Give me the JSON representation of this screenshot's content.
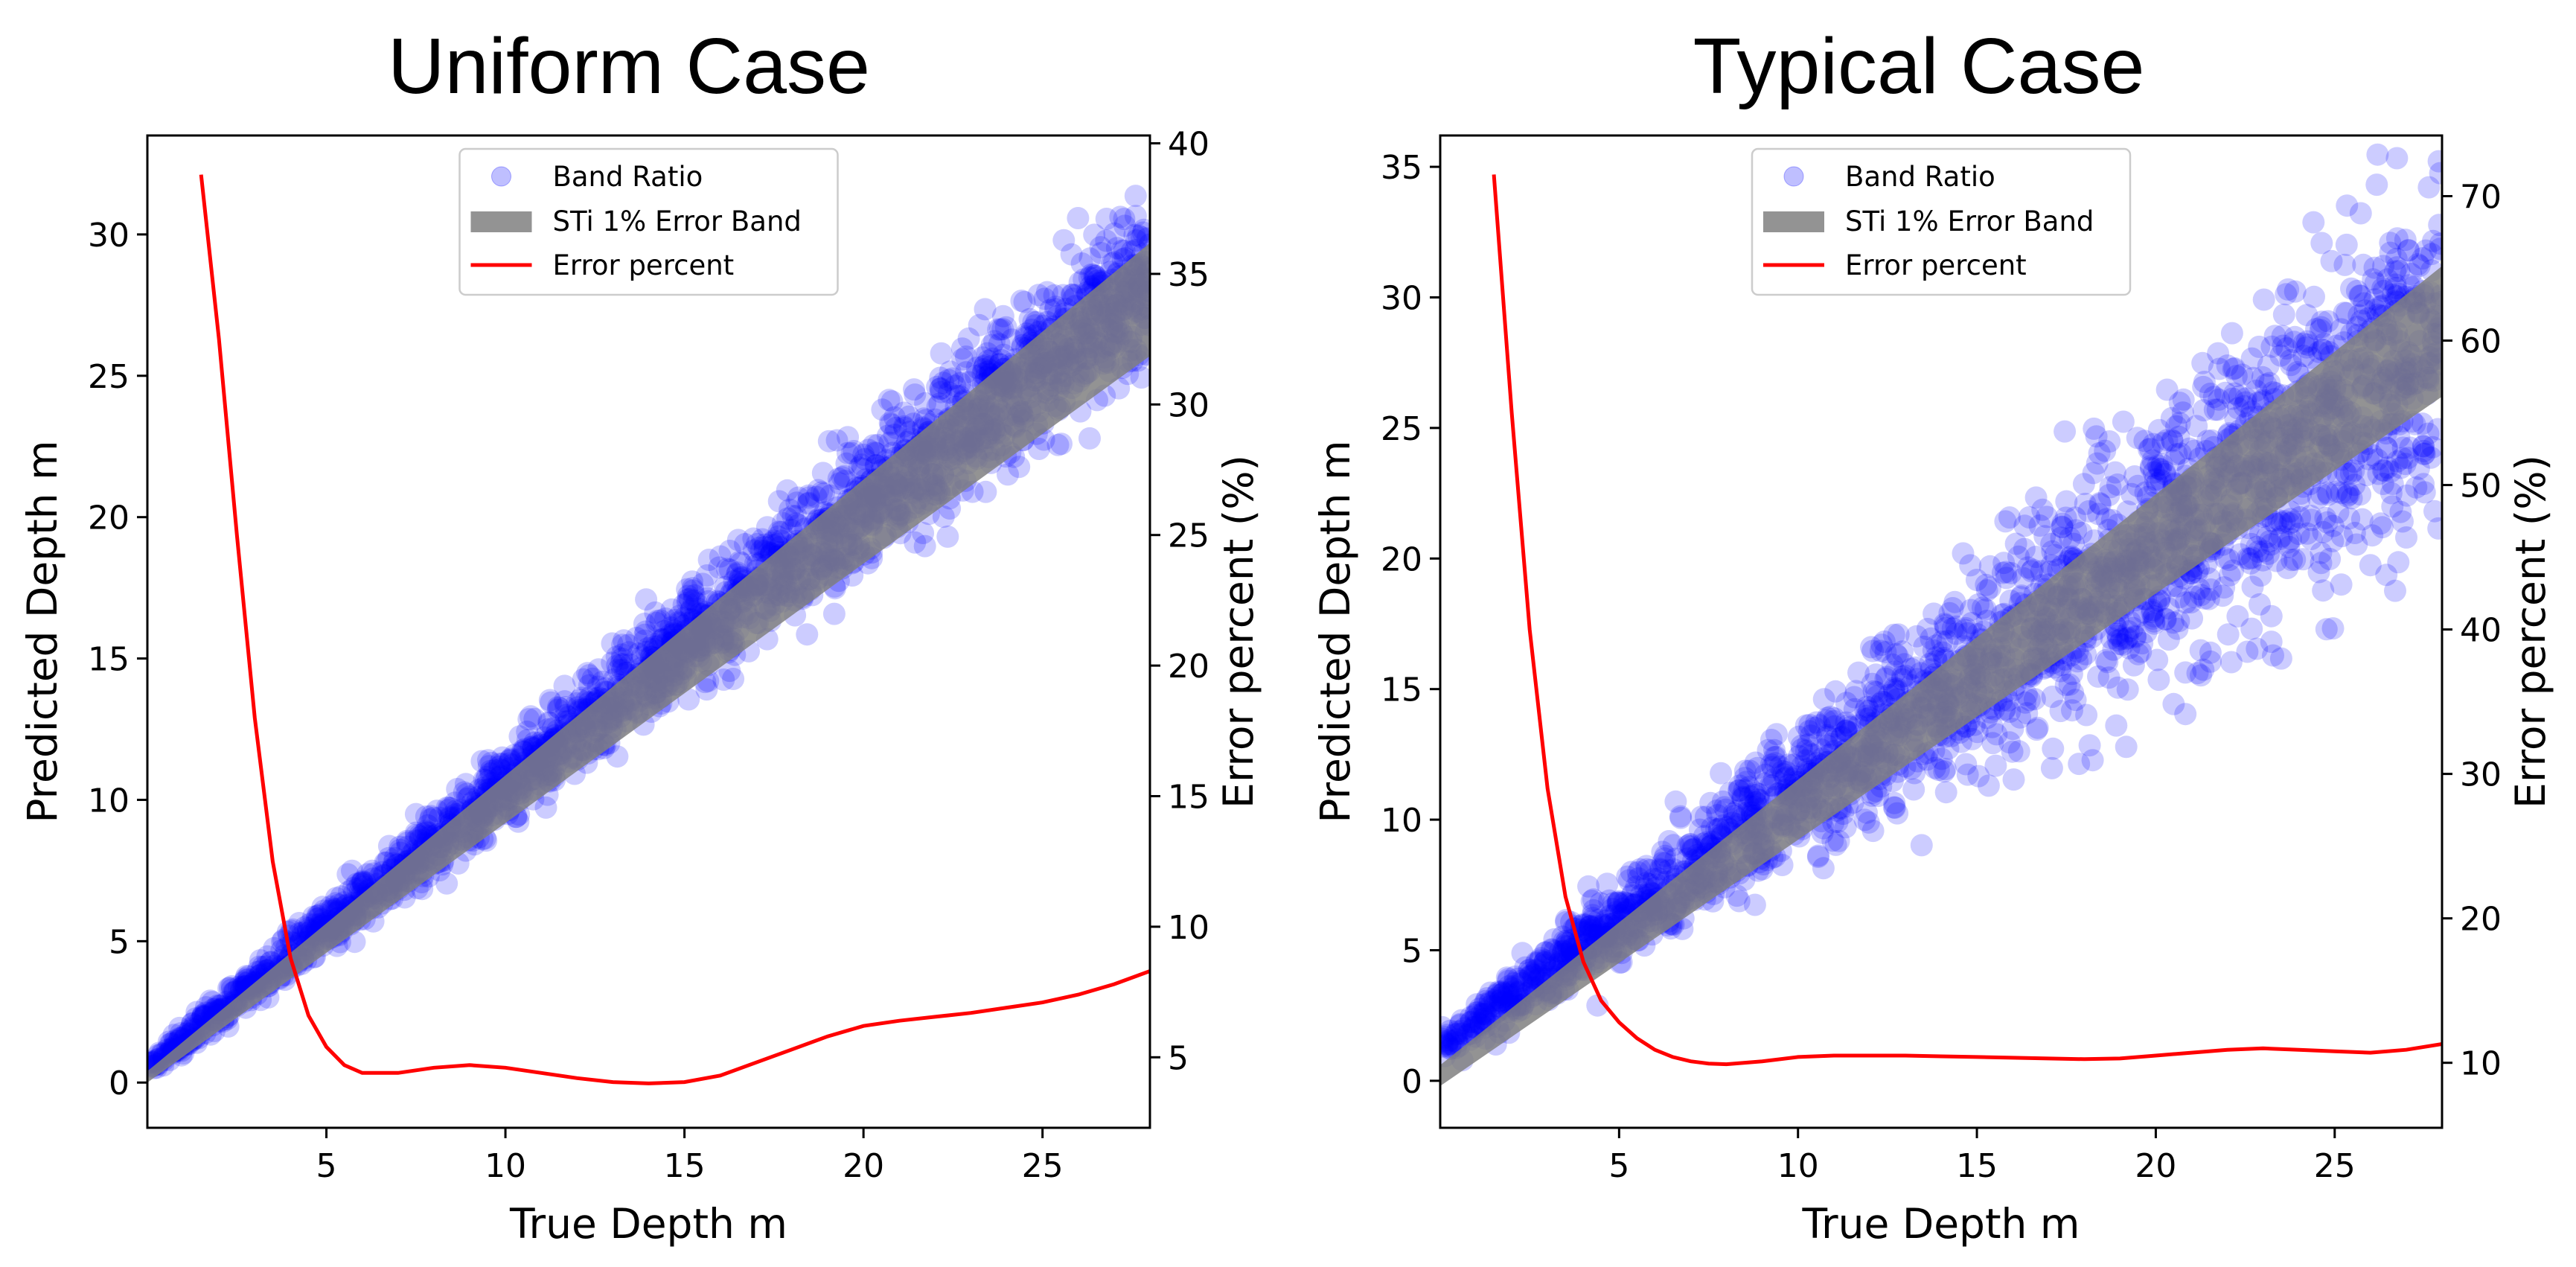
{
  "chart_data": [
    {
      "type": "scatter",
      "title": "Uniform Case",
      "xlabel": "True Depth m",
      "ylabel": "Predicted Depth m",
      "y2label": "Error percent (%)",
      "xlim": [
        0,
        28
      ],
      "ylim": [
        -1.6,
        33.5
      ],
      "y2lim": [
        2.3,
        40.3
      ],
      "xticks": [
        5,
        10,
        15,
        20,
        25
      ],
      "yticks": [
        0,
        5,
        10,
        15,
        20,
        25,
        30
      ],
      "y2ticks": [
        5,
        10,
        15,
        20,
        25,
        30,
        35,
        40
      ],
      "legend": [
        "Band Ratio",
        "STi 1% Error Band",
        "Error percent"
      ],
      "legend_position": "top-center",
      "series": [
        {
          "name": "Band Ratio",
          "kind": "scatter",
          "color": "#0000ff",
          "trend": {
            "slope": 1.0,
            "intercept": 0.5,
            "noise_min": 0.2,
            "noise_growth": 0.045
          }
        },
        {
          "name": "STi 1% Error Band",
          "kind": "band",
          "color": "#808080",
          "lower": [
            [
              0,
              0.0
            ],
            [
              28,
              25.7
            ]
          ],
          "upper": [
            [
              0,
              0.4
            ],
            [
              28,
              29.7
            ]
          ]
        },
        {
          "name": "Error percent",
          "kind": "line",
          "axis": "y2",
          "color": "#ff0000",
          "x": [
            1.5,
            2.0,
            2.5,
            3.0,
            3.5,
            4.0,
            4.5,
            5.0,
            5.5,
            6.0,
            7.0,
            8.0,
            9.0,
            10.0,
            11.0,
            12.0,
            13.0,
            14.0,
            15.0,
            16.0,
            17.0,
            18.0,
            19.0,
            20.0,
            21.0,
            22.0,
            23.0,
            24.0,
            25.0,
            26.0,
            27.0,
            28.0
          ],
          "y": [
            38.8,
            32.5,
            25.0,
            18.0,
            12.5,
            8.8,
            6.6,
            5.4,
            4.7,
            4.4,
            4.4,
            4.6,
            4.7,
            4.6,
            4.4,
            4.2,
            4.05,
            4.0,
            4.05,
            4.3,
            4.8,
            5.3,
            5.8,
            6.2,
            6.4,
            6.55,
            6.7,
            6.9,
            7.1,
            7.4,
            7.8,
            8.3
          ]
        }
      ]
    },
    {
      "type": "scatter",
      "title": "Typical Case",
      "xlabel": "True Depth m",
      "ylabel": "Predicted Depth m",
      "y2label": "Error percent (%)",
      "xlim": [
        0,
        28
      ],
      "ylim": [
        -1.8,
        36.2
      ],
      "y2lim": [
        5.5,
        74.2
      ],
      "xticks": [
        5,
        10,
        15,
        20,
        25
      ],
      "yticks": [
        0,
        5,
        10,
        15,
        20,
        25,
        30,
        35
      ],
      "y2ticks": [
        10,
        20,
        30,
        40,
        50,
        60,
        70
      ],
      "legend": [
        "Band Ratio",
        "STi 1% Error Band",
        "Error percent"
      ],
      "legend_position": "top-center",
      "series": [
        {
          "name": "Band Ratio",
          "kind": "scatter",
          "color": "#0000ff",
          "trend": {
            "slope": 0.96,
            "intercept": 1.3,
            "noise_min": 0.25,
            "noise_growth": 0.11
          }
        },
        {
          "name": "STi 1% Error Band",
          "kind": "band",
          "color": "#808080",
          "lower": [
            [
              0,
              -0.2
            ],
            [
              28,
              26.2
            ]
          ],
          "upper": [
            [
              0,
              0.6
            ],
            [
              28,
              31.2
            ]
          ]
        },
        {
          "name": "Error percent",
          "kind": "line",
          "axis": "y2",
          "color": "#ff0000",
          "x": [
            1.5,
            2.0,
            2.5,
            3.0,
            3.5,
            4.0,
            4.5,
            5.0,
            5.5,
            6.0,
            6.5,
            7.0,
            7.5,
            8.0,
            9.0,
            10.0,
            11.0,
            12.0,
            13.0,
            14.0,
            15.0,
            16.0,
            17.0,
            18.0,
            19.0,
            20.0,
            21.0,
            22.0,
            23.0,
            24.0,
            25.0,
            26.0,
            27.0,
            28.0
          ],
          "y": [
            71.5,
            55.0,
            40.0,
            29.0,
            21.5,
            17.0,
            14.3,
            12.8,
            11.7,
            10.9,
            10.4,
            10.1,
            9.95,
            9.9,
            10.1,
            10.4,
            10.5,
            10.5,
            10.5,
            10.45,
            10.4,
            10.35,
            10.3,
            10.25,
            10.3,
            10.5,
            10.7,
            10.9,
            11.0,
            10.9,
            10.8,
            10.7,
            10.9,
            11.3
          ]
        }
      ]
    }
  ]
}
